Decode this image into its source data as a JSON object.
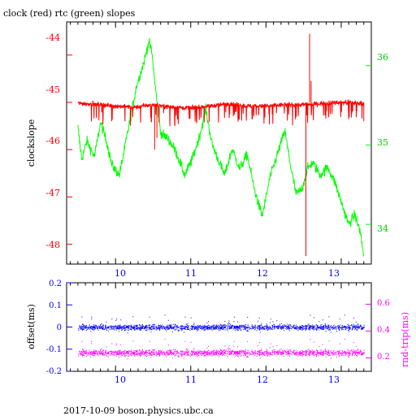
{
  "footer": "2017-10-09  boson.physics.ubc.ca",
  "colors": {
    "clock": "#ff0000",
    "rtc": "#00ff00",
    "offset": "#0000ff",
    "rndtrip": "#ff00ff",
    "axis": "#000000"
  },
  "chart_data": [
    {
      "type": "line",
      "title": "clock (red) rtc (green) slopes",
      "xlabel": "",
      "ylabel": "clockslope",
      "y2label": "",
      "xlim": [
        9.35,
        13.4
      ],
      "ylim": [
        -48.42,
        -43.3
      ],
      "y2lim": [
        33.5,
        36.55
      ],
      "grid": false,
      "x_ticks": [
        "10",
        "11",
        "12",
        "13"
      ],
      "y_ticks": [
        "-44",
        "-45",
        "-46",
        "-47",
        "-48"
      ],
      "y2_ticks": [
        "36",
        "35",
        "34"
      ],
      "series": [
        {
          "axis": "left",
          "x": [
            9.5,
            9.75,
            10.0,
            10.25,
            10.5,
            10.75,
            11.0,
            11.25,
            11.5,
            11.75,
            12.0,
            12.25,
            12.5,
            12.75,
            13.0,
            13.3
          ],
          "values": [
            -45.02,
            -45.04,
            -45.08,
            -45.1,
            -45.05,
            -45.1,
            -45.12,
            -45.08,
            -45.03,
            -45.08,
            -45.08,
            -45.05,
            -45.05,
            -45.02,
            -45.0,
            -45.02
          ]
        },
        {
          "axis": "right",
          "x": [
            9.5,
            9.55,
            9.62,
            9.72,
            9.8,
            9.88,
            9.95,
            10.05,
            10.12,
            10.2,
            10.28,
            10.38,
            10.44,
            10.48,
            10.55,
            10.6,
            10.7,
            10.8,
            10.92,
            11.02,
            11.12,
            11.2,
            11.28,
            11.35,
            11.45,
            11.55,
            11.65,
            11.75,
            11.85,
            11.95,
            12.05,
            12.15,
            12.25,
            12.33,
            12.4,
            12.48,
            12.55,
            12.62,
            12.72,
            12.82,
            12.92,
            13.02,
            13.1,
            13.18,
            13.25,
            13.3
          ],
          "values": [
            35.22,
            34.82,
            35.05,
            34.85,
            35.28,
            35.05,
            34.75,
            34.62,
            34.95,
            35.35,
            35.75,
            36.05,
            36.3,
            36.18,
            35.55,
            35.15,
            35.08,
            34.92,
            34.62,
            34.82,
            35.12,
            35.45,
            35.02,
            34.85,
            34.62,
            34.95,
            34.7,
            34.88,
            34.42,
            34.1,
            34.58,
            34.88,
            35.18,
            34.72,
            34.38,
            34.45,
            34.7,
            34.78,
            34.62,
            34.72,
            34.52,
            34.22,
            34.0,
            34.12,
            33.92,
            33.6
          ]
        }
      ]
    },
    {
      "type": "scatter",
      "title": "",
      "xlabel": "",
      "ylabel": "offset(ms)",
      "y2label": "rnd-trip(ms)",
      "xlim": [
        9.35,
        13.4
      ],
      "ylim": [
        -0.2,
        0.2
      ],
      "y2lim": [
        0.1,
        0.76
      ],
      "grid": false,
      "x_ticks": [
        "10",
        "11",
        "12",
        "13"
      ],
      "y_ticks": [
        "0.2",
        "0.1",
        "0",
        "-0.1",
        "-0.2"
      ],
      "y2_ticks": [
        "0.6",
        "0.4",
        "0.2"
      ],
      "series": [
        {
          "axis": "left",
          "x": [
            9.5,
            13.3
          ],
          "values": [
            0.0,
            0.0
          ]
        },
        {
          "axis": "right",
          "x": [
            9.5,
            13.3
          ],
          "values": [
            0.24,
            0.24
          ]
        }
      ]
    }
  ]
}
